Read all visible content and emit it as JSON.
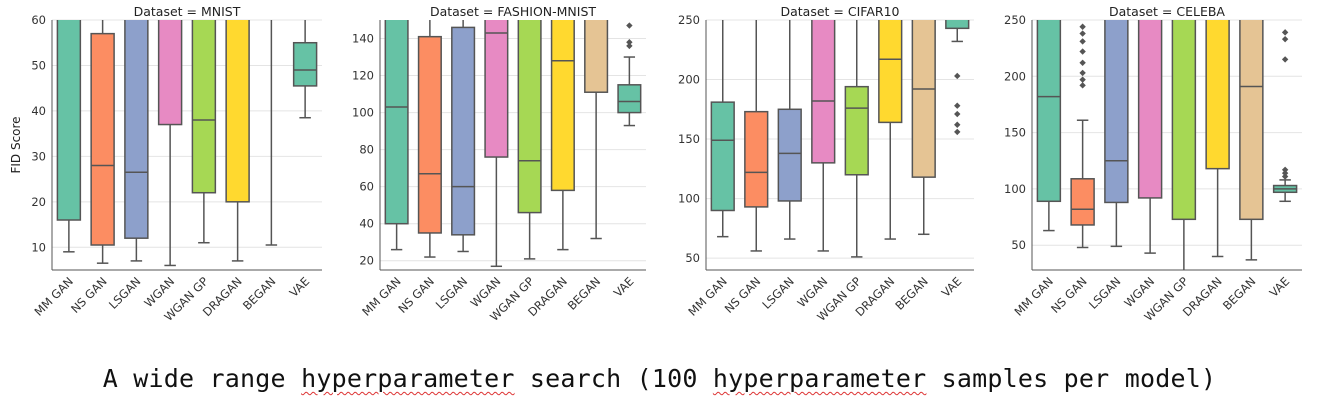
{
  "caption": {
    "before_1": "A wide range ",
    "word_1": "hyperparameter",
    "middle": " search (100 ",
    "word_2": "hyperparameter",
    "after": " samples per model)"
  },
  "colors": {
    "MM GAN": "#66c2a5",
    "NS GAN": "#fc8d62",
    "LSGAN": "#8da0cb",
    "WGAN": "#e78ac3",
    "WGAN GP": "#a6d854",
    "DRAGAN": "#ffd92f",
    "BEGAN": "#e5c494",
    "VAE": "#66c2a5",
    "grid": "#e4e4e4",
    "stroke": "#555555"
  },
  "chart_data": [
    {
      "type": "box",
      "title": "Dataset = MNIST",
      "ylabel": "FID Score",
      "ylim": [
        5,
        60
      ],
      "yticks": [
        10,
        20,
        30,
        40,
        50,
        60
      ],
      "categories": [
        "MM GAN",
        "NS GAN",
        "LSGAN",
        "WGAN",
        "WGAN GP",
        "DRAGAN",
        "BEGAN",
        "VAE"
      ],
      "boxes": [
        {
          "whislo": 9,
          "q1": 16,
          "med": null,
          "q3": 62,
          "whishi": 62,
          "fliers": []
        },
        {
          "whislo": 6.5,
          "q1": 10.5,
          "med": 28,
          "q3": 57,
          "whishi": 62,
          "fliers": []
        },
        {
          "whislo": 7,
          "q1": 12,
          "med": 26.5,
          "q3": 62,
          "whishi": 62,
          "fliers": []
        },
        {
          "whislo": 6,
          "q1": 37,
          "med": null,
          "q3": 62,
          "whishi": 62,
          "fliers": []
        },
        {
          "whislo": 11,
          "q1": 22,
          "med": 38,
          "q3": 62,
          "whishi": 62,
          "fliers": []
        },
        {
          "whislo": 7,
          "q1": 20,
          "med": null,
          "q3": 62,
          "whishi": 62,
          "fliers": []
        },
        {
          "whislo": 10.5,
          "q1": 62,
          "med": null,
          "q3": 62,
          "whishi": 62,
          "fliers": []
        },
        {
          "whislo": 38.5,
          "q1": 45.5,
          "med": 49,
          "q3": 55,
          "whishi": 60,
          "fliers": []
        }
      ]
    },
    {
      "type": "box",
      "title": "Dataset = FASHION-MNIST",
      "ylabel": "",
      "ylim": [
        15,
        150
      ],
      "yticks": [
        20,
        40,
        60,
        80,
        100,
        120,
        140
      ],
      "categories": [
        "MM GAN",
        "NS GAN",
        "LSGAN",
        "WGAN",
        "WGAN GP",
        "DRAGAN",
        "BEGAN",
        "VAE"
      ],
      "boxes": [
        {
          "whislo": 26,
          "q1": 40,
          "med": 103,
          "q3": 152,
          "whishi": 152,
          "fliers": []
        },
        {
          "whislo": 22,
          "q1": 35,
          "med": 67,
          "q3": 141,
          "whishi": 152,
          "fliers": []
        },
        {
          "whislo": 25,
          "q1": 34,
          "med": 60,
          "q3": 146,
          "whishi": 152,
          "fliers": []
        },
        {
          "whislo": 17,
          "q1": 76,
          "med": 143,
          "q3": 152,
          "whishi": 152,
          "fliers": []
        },
        {
          "whislo": 21,
          "q1": 46,
          "med": 74,
          "q3": 152,
          "whishi": 152,
          "fliers": []
        },
        {
          "whislo": 26,
          "q1": 58,
          "med": 128,
          "q3": 152,
          "whishi": 152,
          "fliers": []
        },
        {
          "whislo": 32,
          "q1": 111,
          "med": null,
          "q3": 152,
          "whishi": 152,
          "fliers": []
        },
        {
          "whislo": 93,
          "q1": 100,
          "med": 106,
          "q3": 115,
          "whishi": 130,
          "fliers": [
            136,
            138,
            147
          ]
        }
      ]
    },
    {
      "type": "box",
      "title": "Dataset = CIFAR10",
      "ylabel": "",
      "ylim": [
        40,
        250
      ],
      "yticks": [
        50,
        100,
        150,
        200,
        250
      ],
      "categories": [
        "MM GAN",
        "NS GAN",
        "LSGAN",
        "WGAN",
        "WGAN GP",
        "DRAGAN",
        "BEGAN",
        "VAE"
      ],
      "boxes": [
        {
          "whislo": 68,
          "q1": 90,
          "med": 149,
          "q3": 181,
          "whishi": 252,
          "fliers": []
        },
        {
          "whislo": 56,
          "q1": 93,
          "med": 122,
          "q3": 173,
          "whishi": 252,
          "fliers": []
        },
        {
          "whislo": 66,
          "q1": 98,
          "med": 138,
          "q3": 175,
          "whishi": 252,
          "fliers": []
        },
        {
          "whislo": 56,
          "q1": 130,
          "med": 182,
          "q3": 252,
          "whishi": 252,
          "fliers": []
        },
        {
          "whislo": 51,
          "q1": 120,
          "med": 176,
          "q3": 194,
          "whishi": 252,
          "fliers": []
        },
        {
          "whislo": 66,
          "q1": 164,
          "med": 217,
          "q3": 252,
          "whishi": 252,
          "fliers": []
        },
        {
          "whislo": 70,
          "q1": 118,
          "med": 192,
          "q3": 252,
          "whishi": 252,
          "fliers": []
        },
        {
          "whislo": 232,
          "q1": 243,
          "med": null,
          "q3": 252,
          "whishi": 252,
          "fliers": [
            156,
            162,
            171,
            178,
            203
          ]
        }
      ]
    },
    {
      "type": "box",
      "title": "Dataset = CELEBA",
      "ylabel": "",
      "ylim": [
        28,
        250
      ],
      "yticks": [
        50,
        100,
        150,
        200,
        250
      ],
      "categories": [
        "MM GAN",
        "NS GAN",
        "LSGAN",
        "WGAN",
        "WGAN GP",
        "DRAGAN",
        "BEGAN",
        "VAE"
      ],
      "boxes": [
        {
          "whislo": 63,
          "q1": 89,
          "med": 182,
          "q3": 252,
          "whishi": 252,
          "fliers": []
        },
        {
          "whislo": 48,
          "q1": 68,
          "med": 82,
          "q3": 109,
          "whishi": 161,
          "fliers": [
            192,
            197,
            203,
            212,
            222,
            231,
            238,
            244
          ]
        },
        {
          "whislo": 49,
          "q1": 88,
          "med": 125,
          "q3": 252,
          "whishi": 252,
          "fliers": []
        },
        {
          "whislo": 43,
          "q1": 92,
          "med": null,
          "q3": 252,
          "whishi": 252,
          "fliers": []
        },
        {
          "whislo": 27,
          "q1": 73,
          "med": null,
          "q3": 252,
          "whishi": 252,
          "fliers": []
        },
        {
          "whislo": 40,
          "q1": 118,
          "med": null,
          "q3": 252,
          "whishi": 252,
          "fliers": []
        },
        {
          "whislo": 37,
          "q1": 73,
          "med": 191,
          "q3": 252,
          "whishi": 252,
          "fliers": []
        },
        {
          "whislo": 89,
          "q1": 97,
          "med": 100,
          "q3": 103,
          "whishi": 108,
          "fliers": [
            111,
            114,
            117,
            215,
            233,
            239
          ]
        }
      ]
    }
  ]
}
